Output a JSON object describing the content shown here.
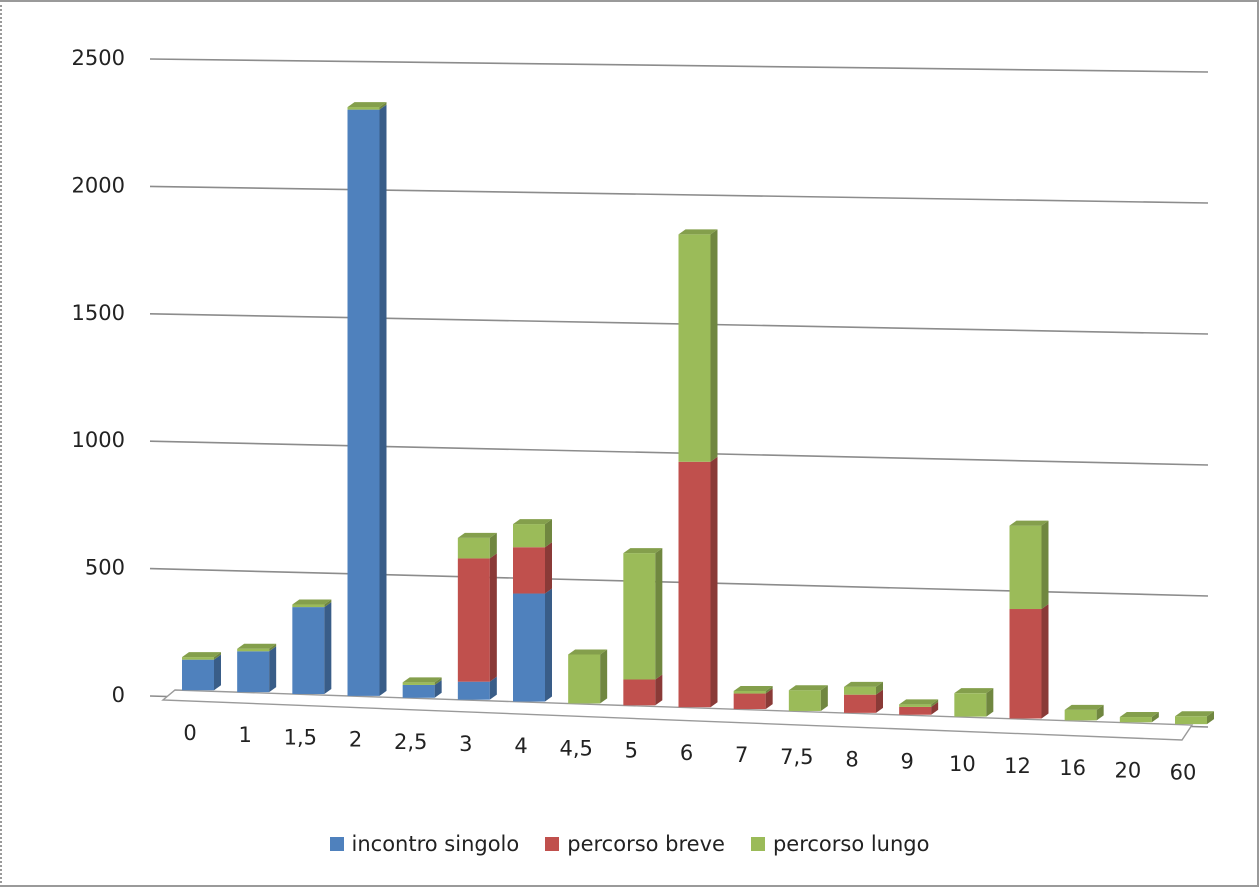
{
  "chart_data": {
    "type": "bar",
    "stacked": true,
    "three_d": true,
    "categories": [
      "0",
      "1",
      "1,5",
      "2",
      "2,5",
      "3",
      "4",
      "4,5",
      "5",
      "6",
      "7",
      "7,5",
      "8",
      "9",
      "10",
      "12",
      "16",
      "20",
      "60"
    ],
    "series": [
      {
        "name": "incontro singolo",
        "color": "#4F81BD",
        "values": [
          120,
          160,
          340,
          2290,
          50,
          70,
          420,
          0,
          0,
          0,
          0,
          0,
          0,
          0,
          0,
          0,
          0,
          0,
          0
        ]
      },
      {
        "name": "percorso breve",
        "color": "#C0504D",
        "values": [
          0,
          0,
          0,
          0,
          0,
          480,
          180,
          0,
          100,
          950,
          60,
          0,
          70,
          30,
          0,
          420,
          0,
          0,
          0
        ]
      },
      {
        "name": "percorso lungo",
        "color": "#9BBB59",
        "values": [
          10,
          10,
          10,
          10,
          10,
          80,
          90,
          190,
          490,
          880,
          10,
          80,
          30,
          10,
          90,
          320,
          40,
          20,
          30
        ]
      }
    ],
    "yticks": [
      "0",
      "500",
      "1000",
      "1500",
      "2000",
      "2500"
    ],
    "ylim": [
      0,
      2500
    ],
    "grid": true,
    "legend_position": "bottom"
  }
}
